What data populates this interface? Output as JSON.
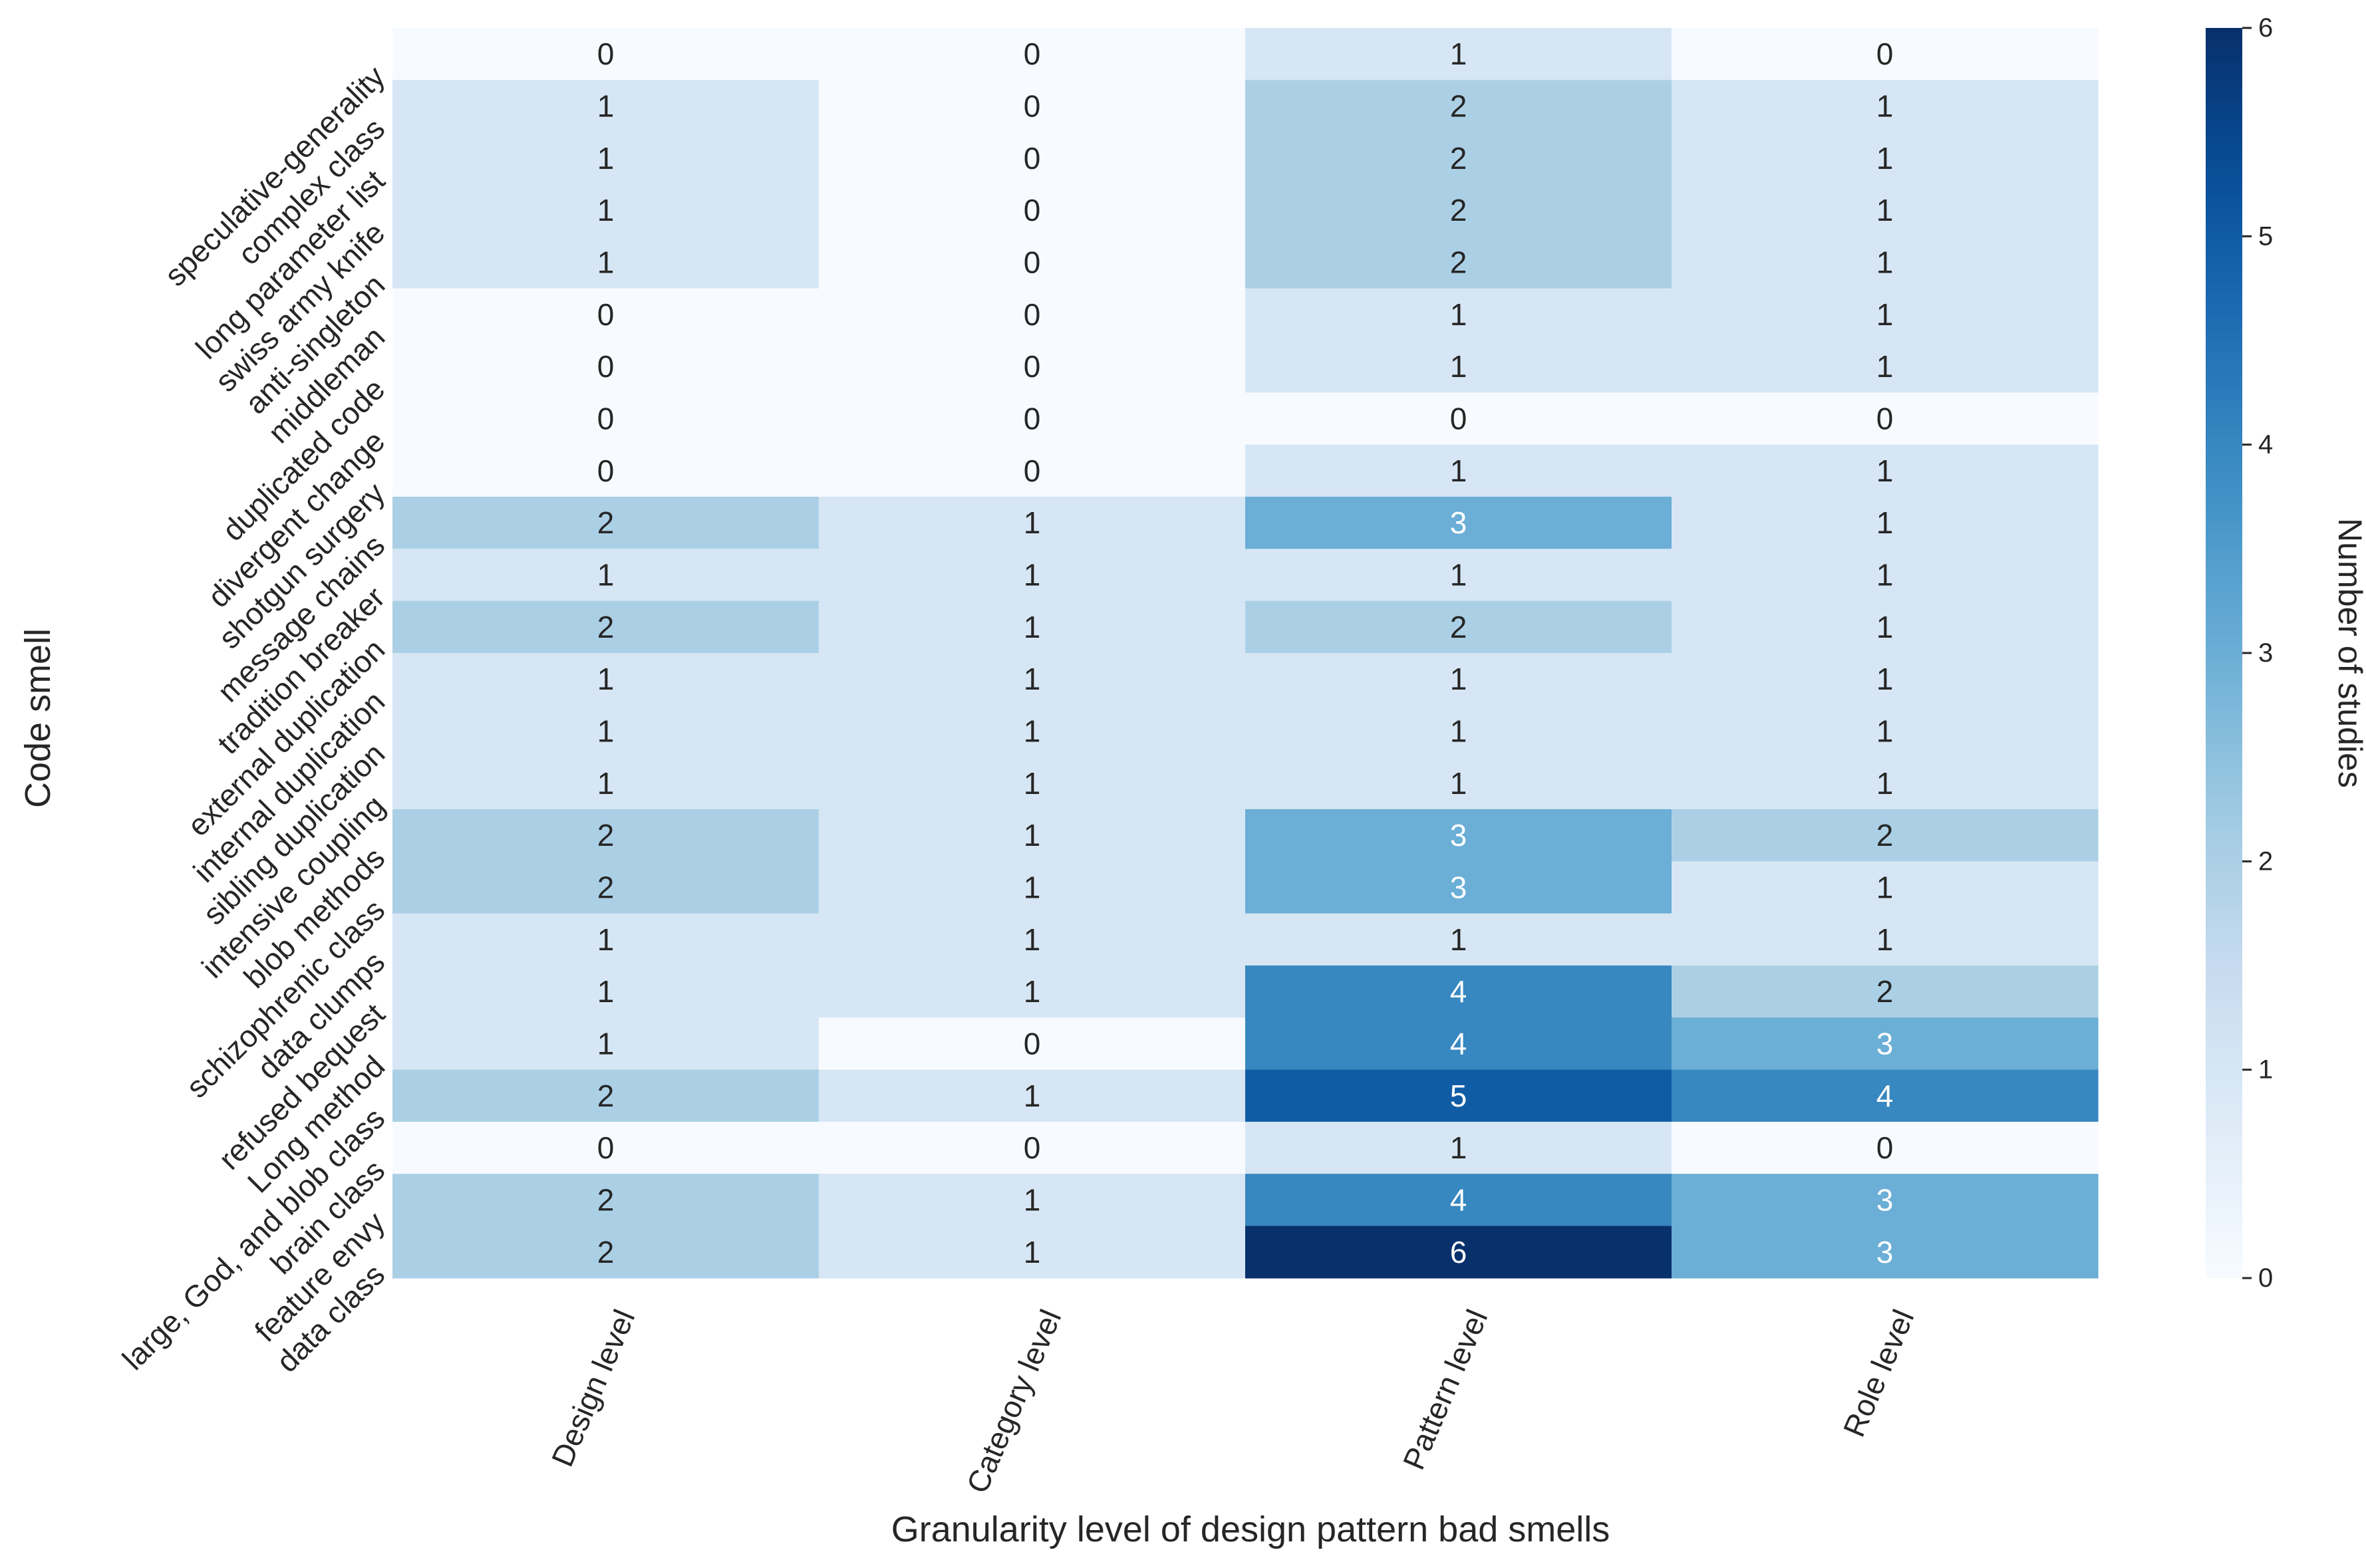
{
  "chart_data": {
    "type": "heatmap",
    "title": "",
    "xlabel": "Granularity level of design pattern bad smells",
    "ylabel": "Code smell",
    "colorbar_label": "Number of studies",
    "colorbar_range": [
      0,
      6
    ],
    "colorbar_ticks": [
      "0",
      "1",
      "2",
      "3",
      "4",
      "5",
      "6"
    ],
    "colormap": "Blues",
    "columns": [
      "Design level",
      "Category level",
      "Pattern level",
      "Role level"
    ],
    "rows": [
      "speculative-generality",
      "complex class",
      "long parameter list",
      "swiss army knife",
      "anti-singleton",
      "middleman",
      "duplicated code",
      "divergent change",
      "shotgun surgery",
      "message chains",
      "tradition breaker",
      "external duplication",
      "internal duplication",
      "sibling duplication",
      "intensive coupling",
      "blob methods",
      "schizophrenic class",
      "data clumps",
      "refused bequest",
      "Long method",
      "large, God, and blob class",
      "brain class",
      "feature envy",
      "data class"
    ],
    "values": [
      [
        0,
        0,
        1,
        0
      ],
      [
        1,
        0,
        2,
        1
      ],
      [
        1,
        0,
        2,
        1
      ],
      [
        1,
        0,
        2,
        1
      ],
      [
        1,
        0,
        2,
        1
      ],
      [
        0,
        0,
        1,
        1
      ],
      [
        0,
        0,
        1,
        1
      ],
      [
        0,
        0,
        0,
        0
      ],
      [
        0,
        0,
        1,
        1
      ],
      [
        2,
        1,
        3,
        1
      ],
      [
        1,
        1,
        1,
        1
      ],
      [
        2,
        1,
        2,
        1
      ],
      [
        1,
        1,
        1,
        1
      ],
      [
        1,
        1,
        1,
        1
      ],
      [
        1,
        1,
        1,
        1
      ],
      [
        2,
        1,
        3,
        2
      ],
      [
        2,
        1,
        3,
        1
      ],
      [
        1,
        1,
        1,
        1
      ],
      [
        1,
        1,
        4,
        2
      ],
      [
        1,
        0,
        4,
        3
      ],
      [
        2,
        1,
        5,
        4
      ],
      [
        0,
        0,
        1,
        0
      ],
      [
        2,
        1,
        4,
        3
      ],
      [
        2,
        1,
        6,
        3
      ]
    ]
  }
}
